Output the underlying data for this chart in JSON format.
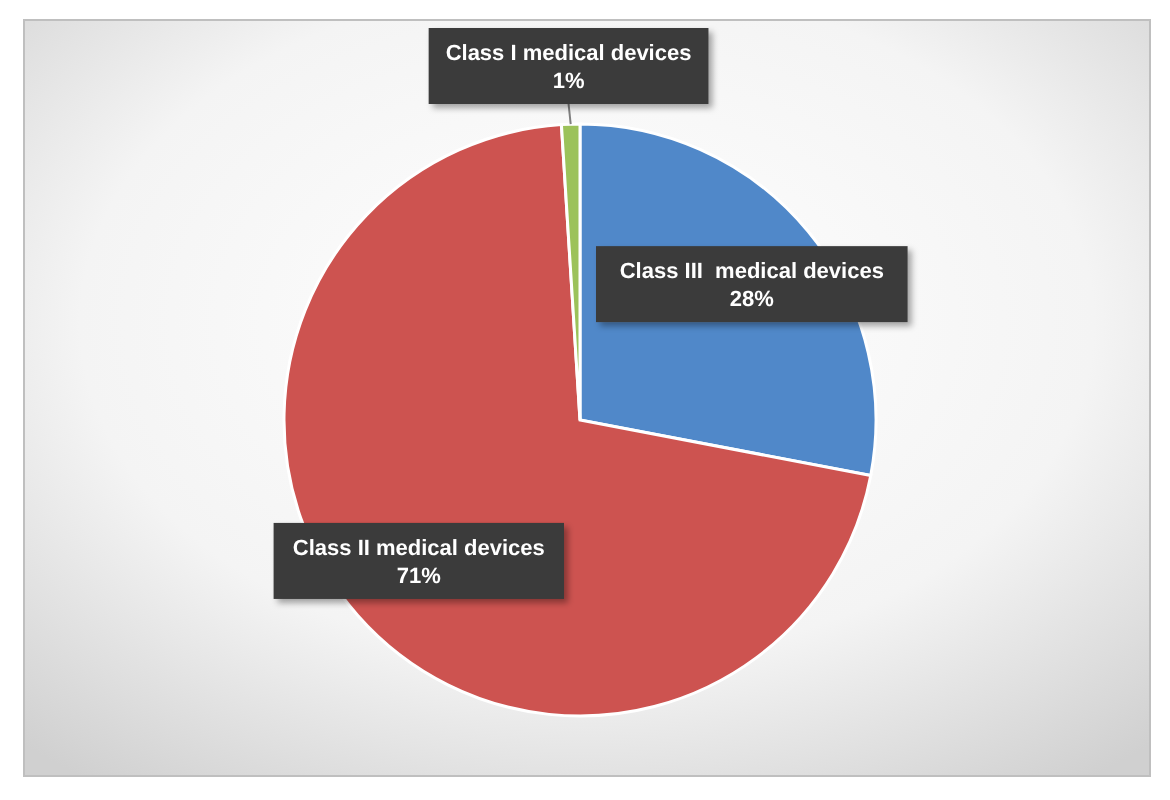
{
  "chart_data": {
    "type": "pie",
    "categories": [
      "Class III  medical devices",
      "Class II medical devices",
      "Class I medical devices"
    ],
    "values": [
      28,
      71,
      1
    ],
    "colors": [
      "#5088c9",
      "#cd5350",
      "#9cc25a"
    ],
    "value_labels": [
      "28%",
      "71%",
      "1%"
    ]
  }
}
